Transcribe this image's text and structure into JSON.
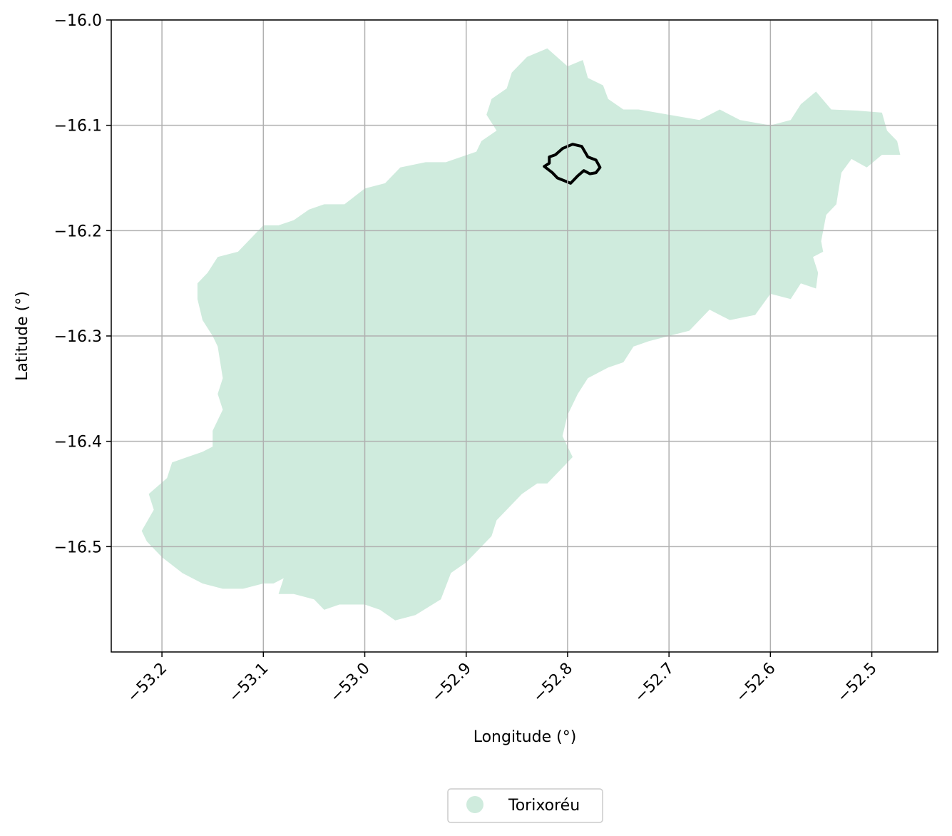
{
  "chart_data": {
    "type": "map",
    "title": "",
    "xlabel": "Longitude (°)",
    "ylabel": "Latitude (°)",
    "xlim": [
      -53.25,
      -52.435
    ],
    "ylim": [
      -16.6,
      -16.0
    ],
    "grid": true,
    "legend_placement": "bottom-center",
    "x_ticks": [
      {
        "value": -53.2,
        "label": "−53.2"
      },
      {
        "value": -53.1,
        "label": "−53.1"
      },
      {
        "value": -53.0,
        "label": "−53.0"
      },
      {
        "value": -52.9,
        "label": "−52.9"
      },
      {
        "value": -52.8,
        "label": "−52.8"
      },
      {
        "value": -52.7,
        "label": "−52.7"
      },
      {
        "value": -52.6,
        "label": "−52.6"
      },
      {
        "value": -52.5,
        "label": "−52.5"
      }
    ],
    "y_ticks": [
      {
        "value": -16.0,
        "label": "−16.0"
      },
      {
        "value": -16.1,
        "label": "−16.1"
      },
      {
        "value": -16.2,
        "label": "−16.2"
      },
      {
        "value": -16.3,
        "label": "−16.3"
      },
      {
        "value": -16.4,
        "label": "−16.4"
      },
      {
        "value": -16.5,
        "label": "−16.5"
      }
    ],
    "layers": [
      {
        "name": "Torixoréu",
        "kind": "polygon",
        "fill": "#cfebdd",
        "coordinates": [
          [
            -52.84,
            -16.035
          ],
          [
            -52.82,
            -16.027
          ],
          [
            -52.8,
            -16.044
          ],
          [
            -52.785,
            -16.038
          ],
          [
            -52.78,
            -16.055
          ],
          [
            -52.765,
            -16.062
          ],
          [
            -52.76,
            -16.075
          ],
          [
            -52.745,
            -16.085
          ],
          [
            -52.73,
            -16.085
          ],
          [
            -52.7,
            -16.09
          ],
          [
            -52.67,
            -16.095
          ],
          [
            -52.65,
            -16.085
          ],
          [
            -52.63,
            -16.095
          ],
          [
            -52.6,
            -16.1
          ],
          [
            -52.58,
            -16.095
          ],
          [
            -52.57,
            -16.08
          ],
          [
            -52.555,
            -16.068
          ],
          [
            -52.54,
            -16.085
          ],
          [
            -52.515,
            -16.086
          ],
          [
            -52.49,
            -16.088
          ],
          [
            -52.485,
            -16.105
          ],
          [
            -52.475,
            -16.115
          ],
          [
            -52.472,
            -16.128
          ],
          [
            -52.49,
            -16.128
          ],
          [
            -52.505,
            -16.14
          ],
          [
            -52.52,
            -16.132
          ],
          [
            -52.53,
            -16.145
          ],
          [
            -52.535,
            -16.175
          ],
          [
            -52.545,
            -16.185
          ],
          [
            -52.55,
            -16.21
          ],
          [
            -52.548,
            -16.22
          ],
          [
            -52.558,
            -16.225
          ],
          [
            -52.553,
            -16.24
          ],
          [
            -52.555,
            -16.255
          ],
          [
            -52.57,
            -16.25
          ],
          [
            -52.58,
            -16.265
          ],
          [
            -52.6,
            -16.26
          ],
          [
            -52.615,
            -16.28
          ],
          [
            -52.64,
            -16.285
          ],
          [
            -52.66,
            -16.275
          ],
          [
            -52.68,
            -16.295
          ],
          [
            -52.7,
            -16.3
          ],
          [
            -52.72,
            -16.305
          ],
          [
            -52.735,
            -16.31
          ],
          [
            -52.745,
            -16.325
          ],
          [
            -52.76,
            -16.33
          ],
          [
            -52.78,
            -16.34
          ],
          [
            -52.79,
            -16.355
          ],
          [
            -52.8,
            -16.375
          ],
          [
            -52.805,
            -16.395
          ],
          [
            -52.795,
            -16.415
          ],
          [
            -52.81,
            -16.43
          ],
          [
            -52.82,
            -16.44
          ],
          [
            -52.83,
            -16.44
          ],
          [
            -52.845,
            -16.45
          ],
          [
            -52.86,
            -16.465
          ],
          [
            -52.87,
            -16.475
          ],
          [
            -52.875,
            -16.49
          ],
          [
            -52.89,
            -16.505
          ],
          [
            -52.9,
            -16.515
          ],
          [
            -52.915,
            -16.525
          ],
          [
            -52.925,
            -16.55
          ],
          [
            -52.95,
            -16.565
          ],
          [
            -52.97,
            -16.57
          ],
          [
            -52.985,
            -16.56
          ],
          [
            -53.0,
            -16.555
          ],
          [
            -53.025,
            -16.555
          ],
          [
            -53.04,
            -16.56
          ],
          [
            -53.05,
            -16.55
          ],
          [
            -53.07,
            -16.545
          ],
          [
            -53.085,
            -16.545
          ],
          [
            -53.08,
            -16.53
          ],
          [
            -53.09,
            -16.535
          ],
          [
            -53.1,
            -16.535
          ],
          [
            -53.12,
            -16.54
          ],
          [
            -53.14,
            -16.54
          ],
          [
            -53.16,
            -16.535
          ],
          [
            -53.18,
            -16.525
          ],
          [
            -53.2,
            -16.51
          ],
          [
            -53.215,
            -16.495
          ],
          [
            -53.22,
            -16.485
          ],
          [
            -53.208,
            -16.465
          ],
          [
            -53.213,
            -16.45
          ],
          [
            -53.195,
            -16.435
          ],
          [
            -53.19,
            -16.42
          ],
          [
            -53.175,
            -16.415
          ],
          [
            -53.16,
            -16.41
          ],
          [
            -53.15,
            -16.405
          ],
          [
            -53.15,
            -16.39
          ],
          [
            -53.14,
            -16.37
          ],
          [
            -53.145,
            -16.355
          ],
          [
            -53.14,
            -16.34
          ],
          [
            -53.145,
            -16.31
          ],
          [
            -53.15,
            -16.3
          ],
          [
            -53.16,
            -16.285
          ],
          [
            -53.165,
            -16.265
          ],
          [
            -53.165,
            -16.25
          ],
          [
            -53.155,
            -16.24
          ],
          [
            -53.145,
            -16.225
          ],
          [
            -53.125,
            -16.22
          ],
          [
            -53.11,
            -16.205
          ],
          [
            -53.1,
            -16.195
          ],
          [
            -53.085,
            -16.195
          ],
          [
            -53.07,
            -16.19
          ],
          [
            -53.055,
            -16.18
          ],
          [
            -53.04,
            -16.175
          ],
          [
            -53.02,
            -16.175
          ],
          [
            -53.0,
            -16.16
          ],
          [
            -52.98,
            -16.155
          ],
          [
            -52.965,
            -16.14
          ],
          [
            -52.94,
            -16.135
          ],
          [
            -52.92,
            -16.135
          ],
          [
            -52.905,
            -16.13
          ],
          [
            -52.89,
            -16.125
          ],
          [
            -52.885,
            -16.115
          ],
          [
            -52.87,
            -16.105
          ],
          [
            -52.88,
            -16.09
          ],
          [
            -52.875,
            -16.075
          ],
          [
            -52.86,
            -16.065
          ],
          [
            -52.855,
            -16.05
          ]
        ]
      },
      {
        "name": "",
        "kind": "outline",
        "stroke": "#000000",
        "coordinates": [
          [
            -52.823,
            -16.139
          ],
          [
            -52.815,
            -16.145
          ],
          [
            -52.81,
            -16.15
          ],
          [
            -52.797,
            -16.155
          ],
          [
            -52.79,
            -16.148
          ],
          [
            -52.784,
            -16.143
          ],
          [
            -52.778,
            -16.146
          ],
          [
            -52.772,
            -16.145
          ],
          [
            -52.768,
            -16.14
          ],
          [
            -52.772,
            -16.133
          ],
          [
            -52.78,
            -16.13
          ],
          [
            -52.786,
            -16.12
          ],
          [
            -52.795,
            -16.118
          ],
          [
            -52.805,
            -16.122
          ],
          [
            -52.812,
            -16.128
          ],
          [
            -52.818,
            -16.13
          ],
          [
            -52.818,
            -16.136
          ]
        ]
      }
    ]
  },
  "legend": {
    "items": [
      {
        "label": "Torixoréu",
        "color": "#cfebdd"
      }
    ]
  }
}
